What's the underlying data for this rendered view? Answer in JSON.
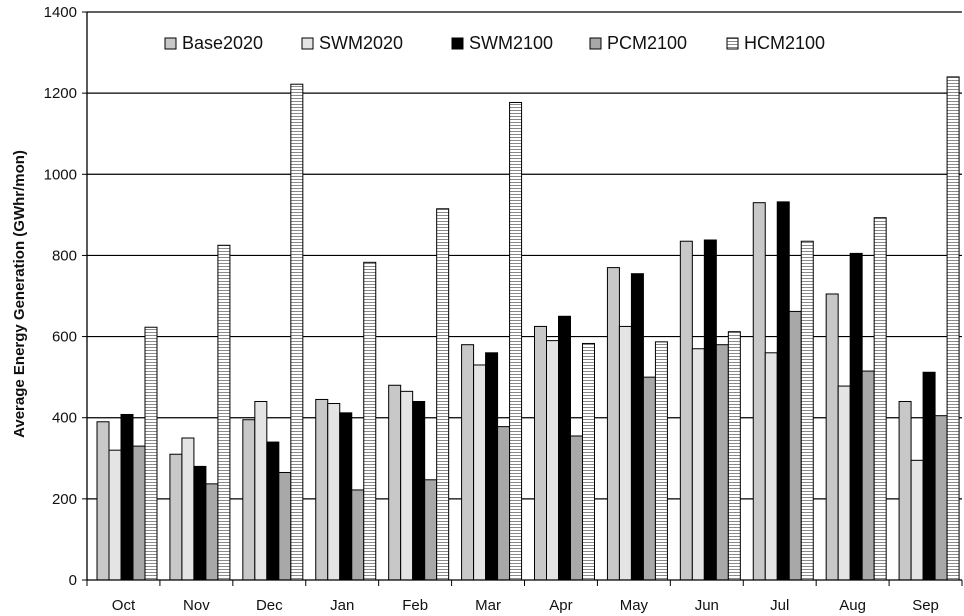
{
  "chart_data": {
    "type": "bar",
    "title": "",
    "xlabel": "",
    "ylabel": "Average Energy Generation (GWhr/mon)",
    "ylim": [
      0,
      1400
    ],
    "yticks": [
      0,
      200,
      400,
      600,
      800,
      1000,
      1200,
      1400
    ],
    "grid": true,
    "legend_position": "top",
    "categories": [
      "Oct",
      "Nov",
      "Dec",
      "Jan",
      "Feb",
      "Mar",
      "Apr",
      "May",
      "Jun",
      "Jul",
      "Aug",
      "Sep"
    ],
    "series": [
      {
        "name": "Base2020",
        "color": "#c8c8c8",
        "pattern": "solid-light",
        "values": [
          390,
          310,
          395,
          445,
          480,
          580,
          625,
          770,
          835,
          930,
          705,
          440
        ]
      },
      {
        "name": "SWM2020",
        "color": "#e4e4e4",
        "pattern": "solid-lighter",
        "values": [
          320,
          350,
          440,
          435,
          465,
          530,
          590,
          625,
          570,
          560,
          478,
          295
        ]
      },
      {
        "name": "SWM2100",
        "color": "#000000",
        "pattern": "solid-black",
        "values": [
          408,
          280,
          340,
          412,
          440,
          560,
          650,
          755,
          838,
          932,
          805,
          512
        ]
      },
      {
        "name": "PCM2100",
        "color": "#a8a8a8",
        "pattern": "solid-mid",
        "values": [
          330,
          237,
          265,
          222,
          247,
          378,
          355,
          500,
          580,
          662,
          515,
          405
        ]
      },
      {
        "name": "HCM2100",
        "color": "#ffffff",
        "pattern": "horizontal-stripes",
        "values": [
          623,
          825,
          1222,
          783,
          915,
          1177,
          583,
          587,
          612,
          835,
          893,
          1240
        ]
      }
    ]
  }
}
